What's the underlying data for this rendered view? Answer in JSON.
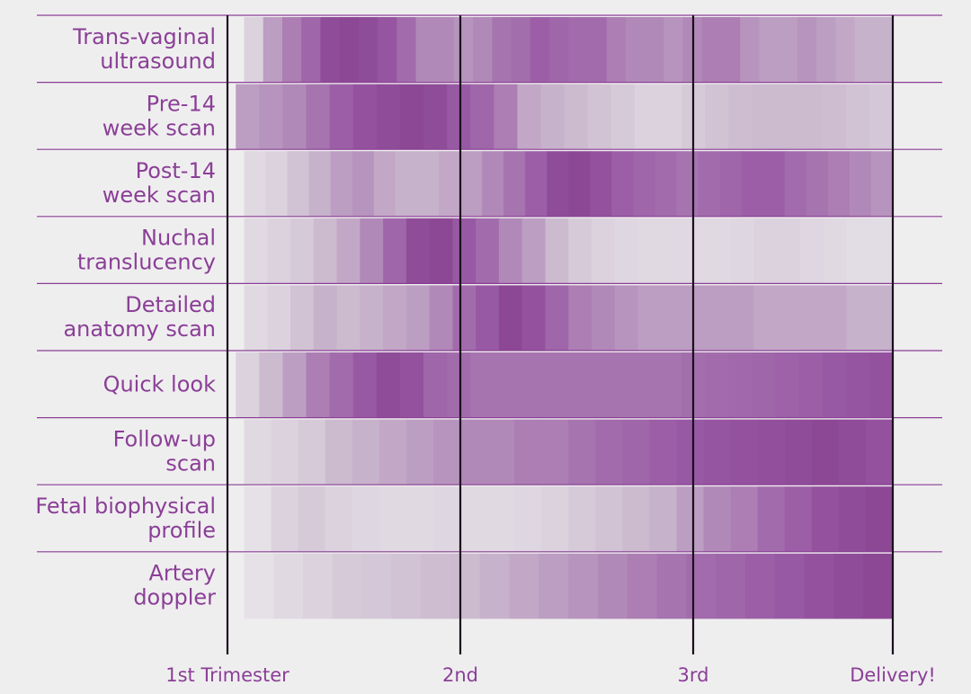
{
  "chart_data": {
    "type": "heatmap",
    "title": "",
    "xlabel": "",
    "ylabel": "",
    "x_ticks": [
      {
        "label": "1st Trimester",
        "value": 0
      },
      {
        "label": "2nd",
        "value": 14
      },
      {
        "label": "3rd",
        "value": 28
      },
      {
        "label": "Delivery!",
        "value": 40
      }
    ],
    "x_range": [
      0,
      40
    ],
    "x_unit": "weeks",
    "bin_weeks": 1,
    "grid": true,
    "legend": "none",
    "colors": {
      "background": "#efeeef",
      "label": "#8a3f96",
      "axis": "#1a0f1c",
      "separator": "#8a3f96",
      "intensity_scale": [
        "#ebe8ec",
        "#d9cfdc",
        "#c9b5cc",
        "#b794bd",
        "#a470ad",
        "#9a5ba6",
        "#8a4592"
      ]
    },
    "rows": [
      {
        "label": "Trans-vaginal ultrasound",
        "values": [
          0.15,
          0.45,
          0.6,
          0.75,
          0.95,
          0.98,
          0.95,
          0.88,
          0.7,
          0.55,
          0.55,
          0.5,
          0.55,
          0.65,
          0.68,
          0.8,
          0.75,
          0.7,
          0.7,
          0.6,
          0.55,
          0.55,
          0.5,
          0.55,
          0.6,
          0.6,
          0.5,
          0.45,
          0.45,
          0.5,
          0.45,
          0.4,
          0.35,
          0.35
        ]
      },
      {
        "label": "Pre-14 week scan",
        "values": [
          0.45,
          0.5,
          0.55,
          0.65,
          0.8,
          0.9,
          0.95,
          0.98,
          0.95,
          0.85,
          0.75,
          0.6,
          0.4,
          0.35,
          0.3,
          0.25,
          0.2,
          0.15,
          0.15,
          0.2,
          0.25,
          0.28,
          0.3,
          0.3,
          0.3,
          0.28,
          0.25,
          0.22
        ]
      },
      {
        "label": "Post-14 week scan",
        "values": [
          0.1,
          0.15,
          0.25,
          0.35,
          0.45,
          0.5,
          0.4,
          0.35,
          0.35,
          0.4,
          0.45,
          0.55,
          0.65,
          0.8,
          0.95,
          0.98,
          0.9,
          0.8,
          0.75,
          0.7,
          0.65,
          0.7,
          0.75,
          0.8,
          0.8,
          0.7,
          0.65,
          0.6,
          0.55,
          0.5
        ]
      },
      {
        "label": "Nuchal translucency",
        "values": [
          0.1,
          0.15,
          0.2,
          0.3,
          0.4,
          0.55,
          0.75,
          0.95,
          0.98,
          0.85,
          0.7,
          0.55,
          0.45,
          0.3,
          0.2,
          0.15,
          0.12,
          0.1,
          0.1,
          0.1,
          0.1,
          0.12,
          0.15,
          0.15,
          0.12,
          0.1,
          0.08,
          0.08
        ]
      },
      {
        "label": "Detailed anatomy scan",
        "values": [
          0.1,
          0.15,
          0.25,
          0.35,
          0.3,
          0.35,
          0.4,
          0.45,
          0.55,
          0.7,
          0.85,
          0.98,
          0.9,
          0.75,
          0.6,
          0.55,
          0.5,
          0.45,
          0.45,
          0.45,
          0.45,
          0.45,
          0.4,
          0.4,
          0.4,
          0.4,
          0.35,
          0.35
        ]
      },
      {
        "label": "Quick look",
        "values": [
          0.15,
          0.3,
          0.45,
          0.6,
          0.7,
          0.85,
          0.95,
          0.9,
          0.75,
          0.7,
          0.65,
          0.65,
          0.65,
          0.65,
          0.65,
          0.65,
          0.65,
          0.65,
          0.65,
          0.68,
          0.7,
          0.72,
          0.75,
          0.78,
          0.8,
          0.85,
          0.88,
          0.9
        ]
      },
      {
        "label": "Follow-up scan",
        "values": [
          0.1,
          0.15,
          0.2,
          0.3,
          0.35,
          0.4,
          0.45,
          0.5,
          0.55,
          0.55,
          0.6,
          0.6,
          0.65,
          0.7,
          0.75,
          0.8,
          0.85,
          0.88,
          0.9,
          0.92,
          0.95,
          0.98,
          0.95,
          0.9
        ]
      },
      {
        "label": "Fetal biophysical profile",
        "values": [
          0.05,
          0.15,
          0.2,
          0.15,
          0.12,
          0.1,
          0.1,
          0.12,
          0.1,
          0.1,
          0.12,
          0.15,
          0.2,
          0.25,
          0.3,
          0.35,
          0.45,
          0.55,
          0.6,
          0.7,
          0.8,
          0.9,
          0.95,
          0.98
        ]
      },
      {
        "label": "Artery doppler",
        "values": [
          0.05,
          0.1,
          0.15,
          0.2,
          0.22,
          0.25,
          0.28,
          0.3,
          0.35,
          0.4,
          0.45,
          0.5,
          0.55,
          0.6,
          0.65,
          0.7,
          0.75,
          0.8,
          0.85,
          0.9,
          0.95,
          0.98
        ]
      }
    ]
  }
}
